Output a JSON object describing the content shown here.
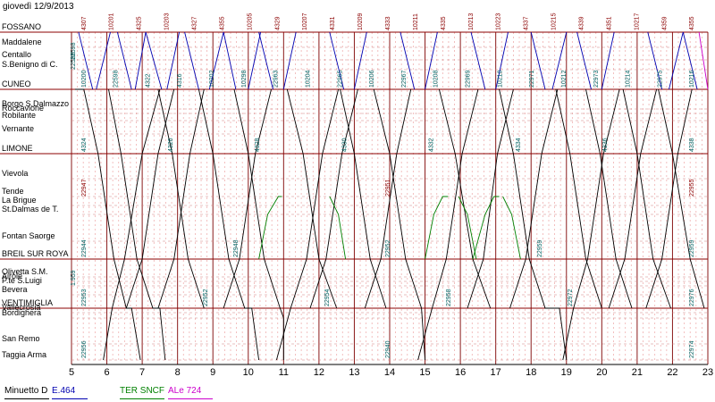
{
  "date_label": "giovedì 12/9/2013",
  "chart_data": {
    "type": "line",
    "title": "",
    "x_ticks": [
      "5",
      "6",
      "7",
      "8",
      "9",
      "10",
      "11",
      "12",
      "13",
      "14",
      "15",
      "16",
      "17",
      "18",
      "19",
      "20",
      "21",
      "22",
      "23"
    ],
    "xlim": [
      5,
      23
    ],
    "stations": [
      {
        "name": "FOSSANO",
        "major": true
      },
      {
        "name": "Maddalene",
        "major": false
      },
      {
        "name": "Centallo",
        "major": false
      },
      {
        "name": "S.Benigno di C.",
        "major": false
      },
      {
        "name": "CUNEO",
        "major": true
      },
      {
        "name": "Borgo S.Dalmazzo",
        "major": false
      },
      {
        "name": "Roccavione",
        "major": false
      },
      {
        "name": "Robilante",
        "major": false
      },
      {
        "name": "Vernante",
        "major": false
      },
      {
        "name": "LIMONE",
        "major": true
      },
      {
        "name": "Vievola",
        "major": false
      },
      {
        "name": "Tende",
        "major": false
      },
      {
        "name": "La Brigue",
        "major": false
      },
      {
        "name": "St.Dalmas de T.",
        "major": false
      },
      {
        "name": "Fontan Saorge",
        "major": false
      },
      {
        "name": "BREIL SUR ROYA",
        "major": true
      },
      {
        "name": "Olivetta S.M.",
        "major": false
      },
      {
        "name": "Airole",
        "major": false
      },
      {
        "name": "P.te S.Luigi",
        "major": false
      },
      {
        "name": "Bevera",
        "major": false
      },
      {
        "name": "VENTIMIGLIA",
        "major": true
      },
      {
        "name": "Vallecrosia",
        "major": false
      },
      {
        "name": "Bordighera",
        "major": false
      },
      {
        "name": "San Remo",
        "major": false
      },
      {
        "name": "Taggia Arma",
        "major": false
      }
    ],
    "legend": [
      {
        "label": "Minuetto D",
        "color": "#000000"
      },
      {
        "label": "E.464",
        "color": "#0000b0"
      },
      {
        "label": "TER SNCF",
        "color": "#008000"
      },
      {
        "label": "ALe 724",
        "color": "#cc00cc"
      }
    ],
    "train_numbers_top": [
      "4307",
      "10201",
      "4325",
      "10203",
      "4327",
      "4355",
      "10205",
      "4329",
      "10207",
      "4331",
      "10209",
      "4333",
      "10211",
      "4335",
      "10213",
      "10223",
      "4337",
      "10215",
      "4339",
      "4351",
      "10217",
      "4359",
      "4355"
    ],
    "train_numbers_cuneo": [
      "10200",
      "22598",
      "4322",
      "4316",
      "10202",
      "10298",
      "22963",
      "10204",
      "22965",
      "10206",
      "22967",
      "10208",
      "22969",
      "10210",
      "22971",
      "10212",
      "22973",
      "10214",
      "22975",
      "10216"
    ],
    "train_numbers_limone": [
      "4324",
      "4326",
      "4328",
      "4330",
      "4332",
      "4334",
      "4336",
      "4338"
    ],
    "train_numbers_tende": [
      "22947",
      "22951",
      "22955"
    ],
    "train_numbers_breil": [
      "22944",
      "22948",
      "22952",
      "22959",
      "22959"
    ],
    "train_numbers_ventimiglia": [
      "22953",
      "22952",
      "22954",
      "22958",
      "22972",
      "22976"
    ],
    "train_numbers_taggia": [
      "22956",
      "22940",
      "22974"
    ],
    "train_numbers_left": [
      "22596",
      "22598",
      "1.959"
    ],
    "trains": [
      {
        "category": "minuetto",
        "points": [
          [
            5.1,
            4
          ],
          [
            5.35,
            4
          ],
          [
            5.75,
            9
          ],
          [
            6.2,
            15
          ],
          [
            6.55,
            20
          ],
          [
            6.7,
            20
          ],
          [
            6.95,
            24
          ]
        ]
      },
      {
        "category": "minuetto",
        "points": [
          [
            5.9,
            24
          ],
          [
            6.15,
            20
          ],
          [
            6.5,
            15
          ],
          [
            7.0,
            9
          ],
          [
            7.5,
            4
          ]
        ]
      },
      {
        "category": "minuetto",
        "points": [
          [
            6.05,
            4
          ],
          [
            6.4,
            9
          ],
          [
            6.85,
            15
          ],
          [
            7.3,
            20
          ],
          [
            7.5,
            20
          ],
          [
            7.65,
            24
          ]
        ]
      },
      {
        "category": "minuetto",
        "points": [
          [
            6.55,
            20
          ],
          [
            7.0,
            15
          ],
          [
            7.45,
            9
          ],
          [
            7.9,
            4
          ]
        ]
      },
      {
        "category": "minuetto",
        "points": [
          [
            7.45,
            4
          ],
          [
            7.85,
            9
          ],
          [
            8.3,
            15
          ],
          [
            8.75,
            20
          ]
        ]
      },
      {
        "category": "minuetto",
        "points": [
          [
            7.45,
            20
          ],
          [
            7.9,
            15
          ],
          [
            8.35,
            9
          ],
          [
            8.75,
            4
          ]
        ]
      },
      {
        "category": "minuetto",
        "points": [
          [
            8.6,
            4
          ],
          [
            9.0,
            9
          ],
          [
            9.45,
            15
          ],
          [
            9.9,
            20
          ],
          [
            10.1,
            20
          ],
          [
            10.3,
            24
          ]
        ]
      },
      {
        "category": "minuetto",
        "points": [
          [
            9.3,
            20
          ],
          [
            9.75,
            15
          ],
          [
            10.2,
            9
          ],
          [
            10.65,
            4
          ]
        ]
      },
      {
        "category": "minuetto",
        "points": [
          [
            9.6,
            4
          ],
          [
            10.0,
            9
          ],
          [
            10.45,
            15
          ],
          [
            10.9,
            20
          ],
          [
            11.0,
            22
          ],
          [
            11.0,
            24
          ]
        ]
      },
      {
        "category": "minuetto",
        "points": [
          [
            10.8,
            24
          ],
          [
            11.2,
            20
          ],
          [
            11.65,
            15
          ],
          [
            12.1,
            9
          ],
          [
            12.55,
            4
          ]
        ]
      },
      {
        "category": "minuetto",
        "points": [
          [
            11.1,
            4
          ],
          [
            11.55,
            9
          ],
          [
            12.0,
            15
          ],
          [
            12.5,
            20
          ]
        ]
      },
      {
        "category": "minuetto",
        "points": [
          [
            11.75,
            20
          ],
          [
            12.2,
            15
          ],
          [
            12.65,
            9
          ],
          [
            13.1,
            4
          ]
        ]
      },
      {
        "category": "minuetto",
        "points": [
          [
            12.6,
            4
          ],
          [
            13.0,
            9
          ],
          [
            13.45,
            15
          ],
          [
            13.9,
            20
          ]
        ]
      },
      {
        "category": "minuetto",
        "points": [
          [
            13.3,
            20
          ],
          [
            13.75,
            15
          ],
          [
            14.2,
            9
          ],
          [
            14.6,
            4
          ]
        ]
      },
      {
        "category": "minuetto",
        "points": [
          [
            13.55,
            4
          ],
          [
            14.0,
            9
          ],
          [
            14.45,
            15
          ],
          [
            14.9,
            20
          ],
          [
            15.0,
            24
          ]
        ]
      },
      {
        "category": "minuetto",
        "points": [
          [
            14.8,
            24
          ],
          [
            15.2,
            20
          ],
          [
            15.6,
            15
          ],
          [
            16.05,
            9
          ],
          [
            16.5,
            4
          ]
        ]
      },
      {
        "category": "minuetto",
        "points": [
          [
            15.4,
            4
          ],
          [
            15.85,
            9
          ],
          [
            16.35,
            15
          ],
          [
            16.85,
            20
          ]
        ]
      },
      {
        "category": "minuetto",
        "points": [
          [
            16.2,
            20
          ],
          [
            16.65,
            15
          ],
          [
            17.05,
            9
          ],
          [
            17.5,
            4
          ]
        ]
      },
      {
        "category": "minuetto",
        "points": [
          [
            17.1,
            4
          ],
          [
            17.5,
            9
          ],
          [
            17.95,
            15
          ],
          [
            18.4,
            20
          ],
          [
            18.8,
            20
          ],
          [
            19.0,
            24
          ]
        ]
      },
      {
        "category": "minuetto",
        "points": [
          [
            17.4,
            20
          ],
          [
            17.85,
            15
          ],
          [
            18.3,
            9
          ],
          [
            18.75,
            4
          ]
        ]
      },
      {
        "category": "minuetto",
        "points": [
          [
            18.9,
            24
          ],
          [
            19.2,
            20
          ],
          [
            19.6,
            15
          ],
          [
            20.05,
            9
          ],
          [
            20.5,
            4
          ]
        ]
      },
      {
        "category": "minuetto",
        "points": [
          [
            18.7,
            4
          ],
          [
            19.1,
            9
          ],
          [
            19.55,
            15
          ],
          [
            20.0,
            20
          ]
        ]
      },
      {
        "category": "minuetto",
        "points": [
          [
            19.55,
            4
          ],
          [
            19.95,
            9
          ],
          [
            20.4,
            15
          ],
          [
            20.85,
            20
          ]
        ]
      },
      {
        "category": "minuetto",
        "points": [
          [
            20.2,
            20
          ],
          [
            20.65,
            15
          ],
          [
            21.1,
            9
          ],
          [
            21.55,
            4
          ]
        ]
      },
      {
        "category": "minuetto",
        "points": [
          [
            20.6,
            4
          ],
          [
            21.0,
            9
          ],
          [
            21.45,
            15
          ],
          [
            21.95,
            20
          ]
        ]
      },
      {
        "category": "minuetto",
        "points": [
          [
            21.25,
            20
          ],
          [
            21.7,
            15
          ],
          [
            22.15,
            9
          ],
          [
            22.55,
            4
          ]
        ]
      },
      {
        "category": "minuetto",
        "points": [
          [
            21.6,
            4
          ],
          [
            22.0,
            9
          ],
          [
            22.5,
            15
          ],
          [
            22.9,
            20
          ]
        ]
      },
      {
        "category": "e464",
        "points": [
          [
            5.2,
            0
          ],
          [
            5.6,
            4
          ]
        ]
      },
      {
        "category": "e464",
        "points": [
          [
            5.7,
            4
          ],
          [
            6.1,
            0
          ]
        ]
      },
      {
        "category": "e464",
        "points": [
          [
            6.3,
            0
          ],
          [
            6.7,
            4
          ]
        ]
      },
      {
        "category": "e464",
        "points": [
          [
            6.8,
            4
          ],
          [
            7.1,
            0
          ]
        ]
      },
      {
        "category": "e464",
        "points": [
          [
            7.1,
            0
          ],
          [
            7.55,
            4
          ]
        ]
      },
      {
        "category": "e464",
        "points": [
          [
            7.7,
            4
          ],
          [
            8.05,
            0
          ]
        ]
      },
      {
        "category": "e464",
        "points": [
          [
            8.2,
            0
          ],
          [
            8.6,
            4
          ]
        ]
      },
      {
        "category": "e464",
        "points": [
          [
            8.9,
            4
          ],
          [
            9.3,
            0
          ]
        ]
      },
      {
        "category": "e464",
        "points": [
          [
            9.3,
            0
          ],
          [
            9.65,
            4
          ]
        ]
      },
      {
        "category": "e464",
        "points": [
          [
            10.0,
            4
          ],
          [
            10.35,
            0
          ]
        ]
      },
      {
        "category": "e464",
        "points": [
          [
            10.3,
            0
          ],
          [
            10.7,
            4
          ]
        ]
      },
      {
        "category": "e464",
        "points": [
          [
            11.0,
            4
          ],
          [
            11.35,
            0
          ]
        ]
      },
      {
        "category": "e464",
        "points": [
          [
            12.3,
            0
          ],
          [
            12.7,
            4
          ]
        ]
      },
      {
        "category": "e464",
        "points": [
          [
            13.0,
            4
          ],
          [
            13.35,
            0
          ]
        ]
      },
      {
        "category": "e464",
        "points": [
          [
            14.3,
            0
          ],
          [
            14.7,
            4
          ]
        ]
      },
      {
        "category": "e464",
        "points": [
          [
            15.0,
            4
          ],
          [
            15.35,
            0
          ]
        ]
      },
      {
        "category": "e464",
        "points": [
          [
            16.3,
            0
          ],
          [
            16.7,
            4
          ]
        ]
      },
      {
        "category": "e464",
        "points": [
          [
            17.0,
            4
          ],
          [
            17.35,
            0
          ]
        ]
      },
      {
        "category": "e464",
        "points": [
          [
            18.0,
            0
          ],
          [
            18.4,
            4
          ]
        ]
      },
      {
        "category": "e464",
        "points": [
          [
            18.6,
            4
          ],
          [
            19.0,
            0
          ]
        ]
      },
      {
        "category": "e464",
        "points": [
          [
            19.3,
            0
          ],
          [
            19.7,
            4
          ]
        ]
      },
      {
        "category": "e464",
        "points": [
          [
            20.0,
            4
          ],
          [
            20.35,
            0
          ]
        ]
      },
      {
        "category": "e464",
        "points": [
          [
            21.3,
            0
          ],
          [
            21.7,
            4
          ]
        ]
      },
      {
        "category": "e464",
        "points": [
          [
            21.9,
            4
          ],
          [
            22.3,
            0
          ]
        ]
      },
      {
        "category": "e464",
        "points": [
          [
            22.3,
            0
          ],
          [
            22.7,
            4
          ]
        ]
      },
      {
        "category": "ter",
        "points": [
          [
            10.3,
            15
          ],
          [
            10.55,
            13
          ],
          [
            10.85,
            11
          ],
          [
            10.95,
            11
          ]
        ]
      },
      {
        "category": "ter",
        "points": [
          [
            12.3,
            11
          ],
          [
            12.55,
            13
          ],
          [
            12.75,
            15
          ]
        ]
      },
      {
        "category": "ter",
        "points": [
          [
            15.0,
            15
          ],
          [
            15.25,
            13
          ],
          [
            15.5,
            11
          ],
          [
            15.65,
            11
          ]
        ]
      },
      {
        "category": "ter",
        "points": [
          [
            15.95,
            11
          ],
          [
            16.2,
            13
          ],
          [
            16.45,
            15
          ]
        ]
      },
      {
        "category": "ter",
        "points": [
          [
            16.35,
            15
          ],
          [
            16.7,
            13
          ],
          [
            16.95,
            11
          ],
          [
            17.1,
            11
          ]
        ]
      },
      {
        "category": "ter",
        "points": [
          [
            17.2,
            11
          ],
          [
            17.45,
            13
          ],
          [
            17.7,
            15
          ]
        ]
      },
      {
        "category": "ale",
        "points": [
          [
            22.75,
            0
          ],
          [
            23.0,
            4
          ]
        ]
      }
    ]
  }
}
